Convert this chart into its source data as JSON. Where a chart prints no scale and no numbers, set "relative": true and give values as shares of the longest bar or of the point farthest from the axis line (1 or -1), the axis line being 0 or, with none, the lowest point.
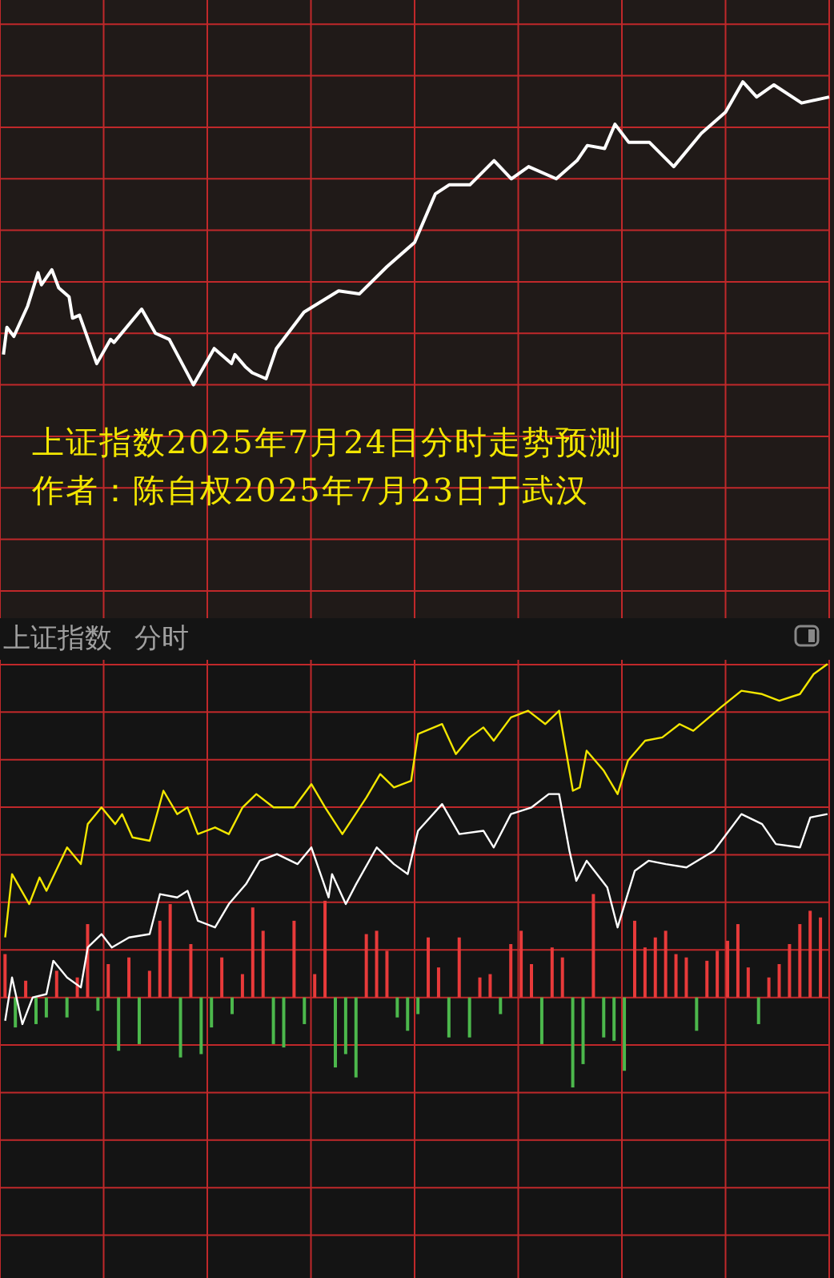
{
  "chart_data": [
    {
      "type": "line",
      "relative": true,
      "tick_labels": false,
      "grid": true,
      "marker": "none",
      "categories": [
        null,
        null,
        null,
        null,
        null,
        null,
        null,
        null,
        null,
        null,
        null,
        null,
        null,
        null,
        null,
        null,
        null,
        null,
        null,
        null,
        null,
        null,
        null,
        null,
        null,
        null,
        null,
        null,
        null,
        null,
        null,
        null,
        null,
        null,
        null,
        null,
        null,
        null,
        null,
        null,
        null,
        null,
        null,
        null,
        null,
        null,
        null,
        null,
        null,
        null,
        null,
        null,
        null,
        null,
        null,
        null,
        null,
        null,
        null,
        null,
        null,
        null,
        null,
        null,
        null,
        null,
        null,
        null,
        null,
        null,
        null,
        null,
        null,
        null,
        null,
        null,
        null,
        null,
        null,
        null,
        null,
        null,
        null,
        null,
        null,
        null,
        null,
        null,
        null,
        null,
        null,
        null,
        null,
        null,
        null,
        null,
        null,
        null,
        null,
        null,
        null,
        null,
        null,
        null,
        null,
        null,
        null,
        null,
        null,
        null,
        null,
        null,
        null,
        null,
        null,
        null,
        null,
        null,
        null,
        null,
        null,
        null,
        null,
        null,
        null,
        null,
        null,
        null,
        null,
        null,
        null,
        null,
        null,
        null,
        null,
        null,
        null,
        null,
        null,
        null,
        null,
        null,
        null,
        null,
        null,
        null,
        null,
        null,
        null,
        null,
        null,
        null,
        null,
        null,
        null,
        null,
        null,
        null,
        null,
        null,
        null,
        null,
        null,
        null,
        null,
        null,
        null,
        null,
        null,
        null,
        null,
        null,
        null,
        null,
        null,
        null,
        null,
        null,
        null,
        null,
        null,
        null,
        null,
        null,
        null,
        null,
        null,
        null,
        null,
        null,
        null,
        null,
        null,
        null,
        null,
        null,
        null,
        null,
        null,
        null,
        null,
        null,
        null,
        null,
        null,
        null,
        null,
        null,
        null,
        null,
        null,
        null,
        null,
        null,
        null,
        null,
        null,
        null,
        null,
        null,
        null,
        null,
        null,
        null,
        null,
        null,
        null,
        null,
        null,
        null,
        null,
        null,
        null,
        null,
        null,
        null,
        null,
        null,
        null,
        null,
        null
      ],
      "annotations": [
        "上证指数2025年7月24日分时走势预测",
        "作者：陈自权2025年7月23日于武汉"
      ],
      "series": [
        {
          "color": "#ffffff",
          "values": [
            null,
            0.1,
            0.19,
            null,
            0.16,
            null,
            null,
            null,
            0.26,
            null,
            null,
            0.37,
            0.33,
            null,
            null,
            0.38,
            null,
            0.32,
            null,
            null,
            0.29,
            0.22,
            null,
            0.23,
            null,
            null,
            null,
            null,
            0.07,
            null,
            null,
            null,
            0.15,
            0.14,
            null,
            null,
            null,
            null,
            null,
            null,
            null,
            0.25,
            null,
            null,
            null,
            0.17,
            null,
            null,
            null,
            0.15,
            null,
            null,
            null,
            null,
            null,
            null,
            0,
            null,
            null,
            null,
            null,
            null,
            0.12,
            null,
            null,
            null,
            null,
            0.07,
            0.1,
            null,
            null,
            0.06,
            null,
            0.04,
            null,
            null,
            null,
            0.02,
            null,
            null,
            0.12,
            null,
            null,
            null,
            null,
            null,
            null,
            null,
            0.24,
            null,
            null,
            null,
            null,
            null,
            null,
            null,
            null,
            null,
            0.31,
            null,
            null,
            null,
            null,
            null,
            0.3,
            null,
            null,
            null,
            null,
            null,
            null,
            null,
            0.39,
            null,
            null,
            null,
            null,
            null,
            null,
            null,
            0.47,
            null,
            null,
            null,
            null,
            null,
            0.63,
            null,
            null,
            null,
            0.66,
            null,
            null,
            null,
            null,
            null,
            0.66,
            null,
            null,
            null,
            null,
            null,
            null,
            0.74,
            null,
            null,
            null,
            null,
            0.68,
            null,
            null,
            null,
            null,
            0.72,
            null,
            null,
            null,
            null,
            null,
            null,
            null,
            0.68,
            null,
            null,
            null,
            null,
            null,
            0.74,
            null,
            null,
            0.79,
            null,
            null,
            null,
            null,
            0.78,
            null,
            null,
            0.86,
            null,
            null,
            null,
            0.8,
            null,
            null,
            null,
            null,
            null,
            0.8,
            null,
            null,
            null,
            null,
            null,
            null,
            0.72,
            null,
            null,
            null,
            null,
            null,
            null,
            null,
            0.83,
            null,
            null,
            null,
            null,
            null,
            null,
            0.9,
            null,
            null,
            null,
            null,
            1,
            null,
            null,
            null,
            0.95,
            null,
            null,
            null,
            null,
            0.99,
            null,
            null,
            null,
            null,
            null,
            null,
            null,
            0.93,
            null,
            null,
            null,
            null,
            null,
            null,
            null,
            0.95
          ]
        }
      ]
    },
    {
      "type": "line",
      "title": "上证指数",
      "subtitle": "分时",
      "relative": true,
      "tick_labels": false,
      "grid": true,
      "marker": "none",
      "categories": [
        null,
        null,
        null,
        null,
        null,
        null,
        null,
        null,
        null,
        null,
        null,
        null,
        null,
        null,
        null,
        null,
        null,
        null,
        null,
        null,
        null,
        null,
        null,
        null,
        null,
        null,
        null,
        null,
        null,
        null,
        null,
        null,
        null,
        null,
        null,
        null,
        null,
        null,
        null,
        null,
        null,
        null,
        null,
        null,
        null,
        null,
        null,
        null,
        null,
        null,
        null,
        null,
        null,
        null,
        null,
        null,
        null,
        null,
        null,
        null,
        null,
        null,
        null,
        null,
        null,
        null,
        null,
        null,
        null,
        null,
        null,
        null,
        null,
        null,
        null,
        null,
        null,
        null,
        null,
        null,
        null,
        null,
        null,
        null,
        null,
        null,
        null,
        null,
        null,
        null,
        null,
        null,
        null,
        null,
        null,
        null,
        null,
        null,
        null,
        null,
        null,
        null,
        null,
        null,
        null,
        null,
        null,
        null,
        null,
        null,
        null,
        null,
        null,
        null,
        null,
        null,
        null,
        null,
        null,
        null,
        null,
        null,
        null,
        null,
        null,
        null,
        null,
        null,
        null,
        null,
        null,
        null,
        null,
        null,
        null,
        null,
        null,
        null,
        null,
        null,
        null,
        null,
        null,
        null,
        null,
        null,
        null,
        null,
        null,
        null,
        null,
        null,
        null,
        null,
        null,
        null,
        null,
        null,
        null,
        null,
        null,
        null,
        null,
        null,
        null,
        null,
        null,
        null,
        null,
        null,
        null,
        null,
        null,
        null,
        null,
        null,
        null,
        null,
        null,
        null,
        null,
        null,
        null,
        null,
        null,
        null,
        null,
        null,
        null,
        null,
        null,
        null,
        null,
        null,
        null,
        null,
        null,
        null,
        null,
        null,
        null,
        null,
        null,
        null,
        null,
        null,
        null,
        null,
        null,
        null,
        null,
        null,
        null,
        null,
        null,
        null,
        null,
        null,
        null,
        null,
        null,
        null,
        null,
        null,
        null,
        null,
        null,
        null,
        null,
        null,
        null,
        null,
        null,
        null,
        null,
        null,
        null,
        null,
        null,
        null,
        null
      ],
      "series": [
        {
          "color": "#f2e600",
          "values": [
            null,
            0.18,
            null,
            0.37,
            null,
            null,
            null,
            null,
            0.28,
            null,
            null,
            0.36,
            null,
            0.32,
            null,
            null,
            null,
            null,
            null,
            0.45,
            null,
            null,
            null,
            0.4,
            null,
            0.52,
            null,
            null,
            null,
            0.57,
            null,
            null,
            null,
            0.52,
            null,
            0.55,
            null,
            null,
            0.48,
            null,
            null,
            null,
            null,
            0.47,
            null,
            null,
            null,
            0.62,
            null,
            null,
            null,
            0.55,
            null,
            null,
            0.57,
            null,
            null,
            0.49,
            null,
            null,
            null,
            null,
            0.51,
            null,
            null,
            null,
            0.49,
            null,
            null,
            null,
            0.57,
            null,
            null,
            null,
            0.61,
            null,
            null,
            null,
            null,
            0.57,
            null,
            null,
            null,
            null,
            null,
            0.57,
            null,
            null,
            null,
            null,
            0.64,
            null,
            null,
            null,
            0.57,
            null,
            null,
            null,
            null,
            0.49,
            null,
            null,
            null,
            null,
            null,
            null,
            0.6,
            null,
            null,
            null,
            0.67,
            null,
            null,
            null,
            0.63,
            null,
            null,
            null,
            null,
            0.65,
            null,
            0.79,
            null,
            null,
            null,
            null,
            null,
            null,
            0.82,
            null,
            null,
            null,
            0.73,
            null,
            null,
            null,
            0.78,
            null,
            null,
            null,
            0.81,
            null,
            null,
            0.77,
            null,
            null,
            null,
            null,
            0.84,
            null,
            null,
            null,
            null,
            0.86,
            null,
            null,
            null,
            null,
            0.82,
            null,
            null,
            null,
            0.86,
            null,
            0.74,
            null,
            0.62,
            null,
            0.63,
            null,
            0.74,
            null,
            null,
            null,
            null,
            0.68,
            null,
            null,
            null,
            0.61,
            null,
            null,
            0.71,
            null,
            null,
            null,
            null,
            0.77,
            null,
            null,
            null,
            null,
            0.78,
            null,
            null,
            null,
            null,
            0.82,
            null,
            null,
            null,
            0.8,
            null,
            null,
            null,
            null,
            null,
            null,
            null,
            0.87,
            null,
            null,
            null,
            null,
            null,
            0.92,
            null,
            null,
            null,
            null,
            null,
            0.91,
            null,
            null,
            null,
            null,
            0.89,
            null,
            null,
            null,
            null,
            null,
            0.91,
            null,
            null,
            null,
            0.97,
            null,
            null,
            null,
            1
          ]
        },
        {
          "color": "#ffffff",
          "values": [
            null,
            -0.07,
            null,
            0.06,
            null,
            null,
            -0.08,
            null,
            null,
            0,
            null,
            null,
            null,
            0.01,
            null,
            0.11,
            null,
            null,
            null,
            0.06,
            null,
            null,
            null,
            0.03,
            null,
            0.15,
            null,
            null,
            null,
            0.19,
            null,
            null,
            0.15,
            null,
            null,
            null,
            null,
            0.18,
            null,
            null,
            null,
            null,
            null,
            0.19,
            null,
            null,
            0.31,
            null,
            null,
            null,
            null,
            0.3,
            null,
            null,
            0.32,
            null,
            null,
            0.23,
            null,
            null,
            null,
            null,
            0.21,
            null,
            null,
            null,
            0.28,
            null,
            null,
            null,
            null,
            0.34,
            null,
            null,
            null,
            0.41,
            null,
            null,
            null,
            null,
            0.43,
            null,
            null,
            null,
            null,
            null,
            0.4,
            null,
            null,
            null,
            0.45,
            null,
            null,
            null,
            null,
            0.3,
            0.37,
            null,
            null,
            null,
            0.28,
            null,
            null,
            0.34,
            null,
            null,
            null,
            null,
            null,
            0.45,
            null,
            null,
            null,
            null,
            0.4,
            null,
            null,
            null,
            0.37,
            null,
            null,
            0.5,
            null,
            null,
            null,
            null,
            null,
            null,
            0.58,
            null,
            null,
            null,
            null,
            0.49,
            null,
            null,
            null,
            null,
            null,
            null,
            0.5,
            null,
            null,
            0.45,
            null,
            null,
            null,
            null,
            0.55,
            null,
            null,
            null,
            null,
            null,
            0.57,
            null,
            null,
            null,
            null,
            0.61,
            null,
            null,
            0.61,
            null,
            null,
            0.44,
            null,
            0.35,
            null,
            null,
            0.41,
            null,
            null,
            null,
            null,
            null,
            0.33,
            null,
            null,
            0.21,
            null,
            null,
            null,
            null,
            0.38,
            null,
            null,
            null,
            0.41,
            null,
            null,
            null,
            null,
            0.4,
            null,
            null,
            null,
            null,
            null,
            0.39,
            null,
            null,
            null,
            null,
            null,
            null,
            null,
            0.44,
            null,
            null,
            null,
            null,
            null,
            null,
            null,
            0.55,
            null,
            null,
            null,
            null,
            null,
            0.52,
            null,
            null,
            null,
            0.46,
            null,
            null,
            null,
            null,
            null,
            null,
            0.45,
            null,
            null,
            0.54,
            null,
            null,
            null,
            null,
            0.55
          ]
        },
        {
          "type": "bar",
          "values": [
            null,
            0.13,
            null,
            null,
            -0.09,
            null,
            null,
            0.05,
            null,
            null,
            -0.08,
            null,
            null,
            -0.06,
            null,
            null,
            0.08,
            null,
            null,
            -0.06,
            null,
            null,
            0.06,
            null,
            null,
            0.22,
            null,
            null,
            -0.04,
            null,
            null,
            0.1,
            null,
            null,
            -0.16,
            null,
            null,
            0.12,
            null,
            null,
            -0.14,
            null,
            null,
            0.08,
            null,
            null,
            0.23,
            null,
            null,
            0.28,
            null,
            null,
            -0.18,
            null,
            null,
            0.16,
            null,
            null,
            -0.17,
            null,
            null,
            -0.09,
            null,
            null,
            0.12,
            null,
            null,
            -0.05,
            null,
            null,
            0.07,
            null,
            null,
            0.27,
            null,
            null,
            0.2,
            null,
            null,
            -0.14,
            null,
            null,
            -0.15,
            null,
            null,
            0.23,
            null,
            null,
            -0.08,
            null,
            null,
            0.07,
            null,
            null,
            0.29,
            null,
            null,
            -0.21,
            null,
            null,
            -0.17,
            null,
            null,
            -0.24,
            null,
            null,
            0.19,
            null,
            null,
            0.2,
            null,
            null,
            0.14,
            null,
            null,
            -0.06,
            null,
            null,
            -0.1,
            null,
            null,
            -0.05,
            null,
            null,
            0.18,
            null,
            null,
            0.09,
            null,
            null,
            -0.12,
            null,
            null,
            0.18,
            null,
            null,
            -0.12,
            null,
            null,
            0.06,
            null,
            null,
            0.07,
            null,
            null,
            -0.05,
            null,
            null,
            0.16,
            null,
            null,
            0.2,
            null,
            null,
            0.1,
            null,
            null,
            -0.14,
            null,
            null,
            0.15,
            null,
            null,
            0.12,
            null,
            null,
            -0.27,
            null,
            null,
            -0.2,
            null,
            null,
            0.31,
            null,
            null,
            -0.12,
            null,
            null,
            -0.13,
            null,
            null,
            -0.22,
            null,
            null,
            0.23,
            null,
            null,
            0.15,
            null,
            null,
            0.18,
            null,
            null,
            0.2,
            null,
            null,
            0.13,
            null,
            null,
            0.12,
            null,
            null,
            -0.1,
            null,
            null,
            0.11,
            null,
            null,
            0.14,
            null,
            null,
            0.17,
            null,
            null,
            0.22,
            null,
            null,
            0.09,
            null,
            null,
            -0.08,
            null,
            null,
            0.06,
            null,
            null,
            0.1,
            null,
            null,
            0.16,
            null,
            null,
            0.22,
            null,
            null,
            0.26,
            null,
            null,
            0.24,
            null,
            null
          ],
          "colors": [
            null,
            "#e83a3a",
            null,
            null,
            "#4cb84c",
            null,
            null,
            "#e83a3a",
            null,
            null,
            "#4cb84c",
            null,
            null,
            "#4cb84c",
            null,
            null,
            "#e83a3a",
            null,
            null,
            "#4cb84c",
            null,
            null,
            "#e83a3a",
            null,
            null,
            "#e83a3a",
            null,
            null,
            "#4cb84c",
            null,
            null,
            "#e83a3a",
            null,
            null,
            "#4cb84c",
            null,
            null,
            "#e83a3a",
            null,
            null,
            "#4cb84c",
            null,
            null,
            "#e83a3a",
            null,
            null,
            "#e83a3a",
            null,
            null,
            "#e83a3a",
            null,
            null,
            "#4cb84c",
            null,
            null,
            "#e83a3a",
            null,
            null,
            "#4cb84c",
            null,
            null,
            "#4cb84c",
            null,
            null,
            "#e83a3a",
            null,
            null,
            "#4cb84c",
            null,
            null,
            "#e83a3a",
            null,
            null,
            "#e83a3a",
            null,
            null,
            "#e83a3a",
            null,
            null,
            "#4cb84c",
            null,
            null,
            "#4cb84c",
            null,
            null,
            "#e83a3a",
            null,
            null,
            "#4cb84c",
            null,
            null,
            "#e83a3a",
            null,
            null,
            "#e83a3a",
            null,
            null,
            "#4cb84c",
            null,
            null,
            "#4cb84c",
            null,
            null,
            "#4cb84c",
            null,
            null,
            "#e83a3a",
            null,
            null,
            "#e83a3a",
            null,
            null,
            "#e83a3a",
            null,
            null,
            "#4cb84c",
            null,
            null,
            "#4cb84c",
            null,
            null,
            "#4cb84c",
            null,
            null,
            "#e83a3a",
            null,
            null,
            "#e83a3a",
            null,
            null,
            "#4cb84c",
            null,
            null,
            "#e83a3a",
            null,
            null,
            "#4cb84c",
            null,
            null,
            "#e83a3a",
            null,
            null,
            "#e83a3a",
            null,
            null,
            "#4cb84c",
            null,
            null,
            "#e83a3a",
            null,
            null,
            "#e83a3a",
            null,
            null,
            "#e83a3a",
            null,
            null,
            "#4cb84c",
            null,
            null,
            "#e83a3a",
            null,
            null,
            "#e83a3a",
            null,
            null,
            "#4cb84c",
            null,
            null,
            "#4cb84c",
            null,
            null,
            "#e83a3a",
            null,
            null,
            "#4cb84c",
            null,
            null,
            "#4cb84c",
            null,
            null,
            "#4cb84c",
            null,
            null,
            "#e83a3a",
            null,
            null,
            "#e83a3a",
            null,
            null,
            "#e83a3a",
            null,
            null,
            "#e83a3a",
            null,
            null,
            "#e83a3a",
            null,
            null,
            "#e83a3a",
            null,
            null,
            "#4cb84c",
            null,
            null,
            "#e83a3a",
            null,
            null,
            "#e83a3a",
            null,
            null,
            "#e83a3a",
            null,
            null,
            "#e83a3a",
            null,
            null,
            "#e83a3a",
            null,
            null,
            "#4cb84c",
            null,
            null,
            "#e83a3a",
            null,
            null,
            "#e83a3a",
            null,
            null,
            "#e83a3a",
            null,
            null,
            "#e83a3a",
            null,
            null,
            "#e83a3a",
            null,
            null,
            "#e83a3a",
            null,
            null
          ]
        }
      ]
    }
  ]
}
